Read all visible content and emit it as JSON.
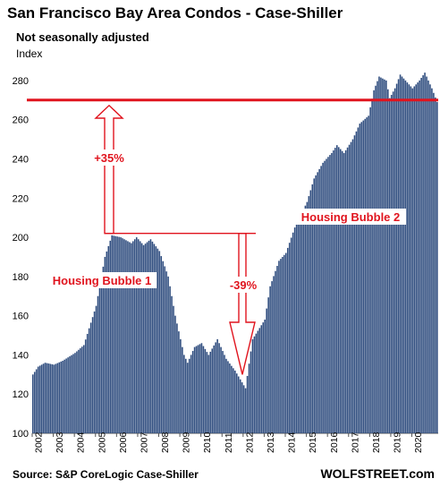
{
  "chart_data": {
    "type": "bar",
    "title": "San Francisco Bay Area Condos - Case-Shiller",
    "subtitle": "Not seasonally adjusted",
    "ylabel": "Index",
    "ylim": [
      100,
      290
    ],
    "yticks": [
      100,
      120,
      140,
      160,
      180,
      200,
      220,
      240,
      260,
      280
    ],
    "x_labels": [
      "2002",
      "2003",
      "2004",
      "2005",
      "2006",
      "2007",
      "2008",
      "2009",
      "2010",
      "2011",
      "2012",
      "2013",
      "2014",
      "2015",
      "2016",
      "2017",
      "2018",
      "2019",
      "2020"
    ],
    "series": [
      {
        "frequency": "monthly",
        "start": "2002-01",
        "anchors": [
          [
            "2002-01",
            130
          ],
          [
            "2002-04",
            134
          ],
          [
            "2002-08",
            136
          ],
          [
            "2003-01",
            135
          ],
          [
            "2003-06",
            137
          ],
          [
            "2004-01",
            141
          ],
          [
            "2004-06",
            145
          ],
          [
            "2005-01",
            165
          ],
          [
            "2005-06",
            190
          ],
          [
            "2005-10",
            201
          ],
          [
            "2006-03",
            200
          ],
          [
            "2006-09",
            197
          ],
          [
            "2006-12",
            200
          ],
          [
            "2007-04",
            196
          ],
          [
            "2007-08",
            199
          ],
          [
            "2008-01",
            193
          ],
          [
            "2008-06",
            180
          ],
          [
            "2008-10",
            160
          ],
          [
            "2009-03",
            140
          ],
          [
            "2009-05",
            136
          ],
          [
            "2009-09",
            144
          ],
          [
            "2010-01",
            146
          ],
          [
            "2010-05",
            140
          ],
          [
            "2010-10",
            148
          ],
          [
            "2011-03",
            138
          ],
          [
            "2011-08",
            132
          ],
          [
            "2011-12",
            126
          ],
          [
            "2012-02",
            123
          ],
          [
            "2012-06",
            148
          ],
          [
            "2013-01",
            158
          ],
          [
            "2013-04",
            175
          ],
          [
            "2013-09",
            188
          ],
          [
            "2014-01",
            192
          ],
          [
            "2014-06",
            205
          ],
          [
            "2015-01",
            218
          ],
          [
            "2015-05",
            230
          ],
          [
            "2015-10",
            238
          ],
          [
            "2016-03",
            243
          ],
          [
            "2016-06",
            247
          ],
          [
            "2016-10",
            243
          ],
          [
            "2017-03",
            250
          ],
          [
            "2017-07",
            258
          ],
          [
            "2017-12",
            262
          ],
          [
            "2018-03",
            275
          ],
          [
            "2018-06",
            282
          ],
          [
            "2018-10",
            280
          ],
          [
            "2018-12",
            271
          ],
          [
            "2019-03",
            276
          ],
          [
            "2019-06",
            283
          ],
          [
            "2019-10",
            279
          ],
          [
            "2020-01",
            276
          ],
          [
            "2020-05",
            280
          ],
          [
            "2020-08",
            284
          ],
          [
            "2020-12",
            276
          ],
          [
            "2021-03",
            269
          ]
        ]
      }
    ],
    "reference_line": {
      "value": 270,
      "color": "#e0141e"
    },
    "annotations": [
      {
        "text": "Housing Bubble 1"
      },
      {
        "text": "Housing Bubble 2"
      },
      {
        "text": "+35%"
      },
      {
        "text": "-39%"
      }
    ],
    "bar_color": "#2e4c7e"
  },
  "footer": {
    "source": "Source: S&P CoreLogic Case-Shiller",
    "brand": "WOLFSTREET.com"
  }
}
